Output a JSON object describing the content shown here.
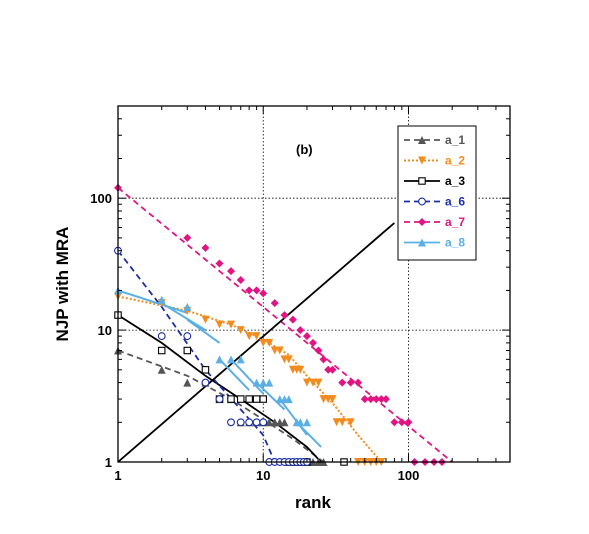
{
  "chart_data": {
    "type": "scatter",
    "panel_label": "(b)",
    "xlabel": "rank",
    "ylabel": "NJP with MRA",
    "x_scale": "log",
    "y_scale": "log",
    "xlim": [
      1,
      500
    ],
    "ylim": [
      1,
      500
    ],
    "x_ticks": [
      {
        "value": 1,
        "label": "1"
      },
      {
        "value": 10,
        "label": "10"
      },
      {
        "value": 100,
        "label": "100"
      }
    ],
    "y_ticks": [
      {
        "value": 1,
        "label": "1"
      },
      {
        "value": 10,
        "label": "10"
      },
      {
        "value": 100,
        "label": "100"
      }
    ],
    "grid": true,
    "legend_position": "top-right",
    "series": [
      {
        "name": "a_1",
        "color": "#555555",
        "marker": "triangle",
        "line": "dashed",
        "points": [
          [
            1,
            7
          ],
          [
            2,
            5
          ],
          [
            3,
            4
          ],
          [
            4,
            4
          ],
          [
            5,
            3
          ],
          [
            6,
            3
          ],
          [
            7,
            2
          ],
          [
            8,
            2
          ],
          [
            9,
            2
          ],
          [
            10,
            2
          ],
          [
            11,
            2
          ],
          [
            12,
            2
          ],
          [
            13,
            2
          ],
          [
            14,
            2
          ],
          [
            15,
            1
          ],
          [
            16,
            1
          ],
          [
            17,
            1
          ],
          [
            18,
            1
          ],
          [
            19,
            1
          ],
          [
            20,
            1
          ],
          [
            22,
            1
          ],
          [
            24,
            1
          ],
          [
            26,
            1
          ]
        ],
        "fit": [
          [
            1,
            7
          ],
          [
            3,
            4.5
          ],
          [
            6,
            3
          ],
          [
            10,
            2.1
          ],
          [
            16,
            1.5
          ],
          [
            26,
            1
          ]
        ]
      },
      {
        "name": "a_2",
        "color": "#F28C1E",
        "marker": "triangle-down",
        "line": "dotted",
        "points": [
          [
            1,
            18
          ],
          [
            2,
            16
          ],
          [
            3,
            14
          ],
          [
            4,
            12
          ],
          [
            5,
            11
          ],
          [
            6,
            11
          ],
          [
            7,
            10
          ],
          [
            8,
            9
          ],
          [
            9,
            9
          ],
          [
            10,
            8
          ],
          [
            11,
            8
          ],
          [
            12,
            7
          ],
          [
            13,
            7
          ],
          [
            14,
            6
          ],
          [
            15,
            6
          ],
          [
            16,
            5
          ],
          [
            17,
            5
          ],
          [
            18,
            5
          ],
          [
            20,
            4
          ],
          [
            22,
            4
          ],
          [
            24,
            4
          ],
          [
            26,
            3
          ],
          [
            28,
            3
          ],
          [
            30,
            3
          ],
          [
            32,
            2
          ],
          [
            35,
            2
          ],
          [
            40,
            2
          ],
          [
            45,
            1
          ],
          [
            50,
            1
          ],
          [
            55,
            1
          ],
          [
            60,
            1
          ],
          [
            65,
            1
          ]
        ],
        "fit": [
          [
            1,
            18
          ],
          [
            3,
            14
          ],
          [
            6,
            11
          ],
          [
            10,
            8.5
          ],
          [
            15,
            6.5
          ],
          [
            20,
            4.5
          ],
          [
            30,
            2.8
          ],
          [
            45,
            1.6
          ],
          [
            65,
            1
          ]
        ]
      },
      {
        "name": "a_3",
        "color": "#000000",
        "marker": "square-open",
        "line": "solid",
        "points": [
          [
            1,
            13
          ],
          [
            2,
            7
          ],
          [
            3,
            7
          ],
          [
            4,
            5
          ],
          [
            5,
            3
          ],
          [
            6,
            3
          ],
          [
            7,
            3
          ],
          [
            8,
            3
          ],
          [
            9,
            3
          ],
          [
            10,
            3
          ],
          [
            20,
            1
          ],
          [
            36,
            1
          ]
        ],
        "fit": [
          [
            1,
            13
          ],
          [
            2,
            8
          ],
          [
            4,
            4.5
          ],
          [
            7,
            3
          ],
          [
            12,
            2
          ],
          [
            20,
            1.3
          ],
          [
            25,
            1
          ]
        ]
      },
      {
        "name": "a_6",
        "color": "#1A2FA8",
        "marker": "circle-open",
        "line": "dashed",
        "points": [
          [
            1,
            40
          ],
          [
            2,
            9
          ],
          [
            3,
            9
          ],
          [
            4,
            4
          ],
          [
            5,
            3
          ],
          [
            6,
            2
          ],
          [
            7,
            2
          ],
          [
            8,
            2
          ],
          [
            9,
            2
          ],
          [
            10,
            2
          ],
          [
            11,
            1
          ],
          [
            12,
            1
          ],
          [
            13,
            1
          ],
          [
            14,
            1
          ],
          [
            15,
            1
          ],
          [
            16,
            1
          ],
          [
            17,
            1
          ],
          [
            18,
            1
          ],
          [
            19,
            1
          ],
          [
            20,
            1
          ]
        ],
        "fit": [
          [
            1,
            40
          ],
          [
            2,
            15
          ],
          [
            4,
            5
          ],
          [
            7,
            2.5
          ],
          [
            10,
            1.6
          ],
          [
            12,
            1
          ]
        ]
      },
      {
        "name": "a_7",
        "color": "#E01583",
        "marker": "diamond",
        "line": "dashed",
        "points": [
          [
            1,
            120
          ],
          [
            3,
            50
          ],
          [
            4,
            42
          ],
          [
            5,
            32
          ],
          [
            6,
            28
          ],
          [
            7,
            24
          ],
          [
            8,
            20
          ],
          [
            9,
            20
          ],
          [
            10,
            19
          ],
          [
            12,
            16
          ],
          [
            14,
            13
          ],
          [
            16,
            12
          ],
          [
            18,
            10
          ],
          [
            20,
            9
          ],
          [
            22,
            8
          ],
          [
            24,
            7
          ],
          [
            26,
            6
          ],
          [
            28,
            5
          ],
          [
            30,
            5
          ],
          [
            35,
            4
          ],
          [
            40,
            4
          ],
          [
            45,
            4
          ],
          [
            50,
            3
          ],
          [
            55,
            3
          ],
          [
            60,
            3
          ],
          [
            65,
            3
          ],
          [
            70,
            3
          ],
          [
            80,
            2
          ],
          [
            90,
            2
          ],
          [
            100,
            2
          ],
          [
            110,
            1
          ],
          [
            130,
            1
          ],
          [
            150,
            1
          ],
          [
            170,
            1
          ]
        ],
        "fit": [
          [
            1,
            120
          ],
          [
            200,
            1
          ]
        ]
      },
      {
        "name": "a_8",
        "color": "#5AAFE6",
        "marker": "triangle",
        "line": "solid",
        "points": [
          [
            1,
            20
          ],
          [
            2,
            17
          ],
          [
            3,
            15
          ],
          [
            5,
            6
          ],
          [
            6,
            6
          ],
          [
            7,
            6
          ],
          [
            9,
            4
          ],
          [
            10,
            4
          ],
          [
            11,
            4
          ],
          [
            13,
            3
          ],
          [
            14,
            3
          ],
          [
            15,
            3
          ],
          [
            17,
            2
          ],
          [
            18,
            2
          ],
          [
            20,
            2
          ]
        ],
        "fit": []
      },
      {
        "name": "",
        "color": "#000000",
        "marker": "none",
        "line": "solid",
        "points": [],
        "fit": [
          [
            1,
            1
          ],
          [
            80,
            65
          ]
        ]
      }
    ],
    "series_8_segments": [
      [
        [
          1,
          20
        ],
        [
          3,
          13.5
        ]
      ],
      [
        [
          2,
          16
        ],
        [
          4,
          10
        ]
      ],
      [
        [
          3,
          12
        ],
        [
          5,
          8
        ]
      ],
      [
        [
          5,
          6
        ],
        [
          8,
          3.5
        ]
      ],
      [
        [
          6,
          6
        ],
        [
          10,
          3.3
        ]
      ],
      [
        [
          9,
          4
        ],
        [
          14,
          2.5
        ]
      ],
      [
        [
          13,
          3
        ],
        [
          20,
          1.6
        ]
      ],
      [
        [
          17,
          2
        ],
        [
          25,
          1.3
        ]
      ]
    ]
  }
}
